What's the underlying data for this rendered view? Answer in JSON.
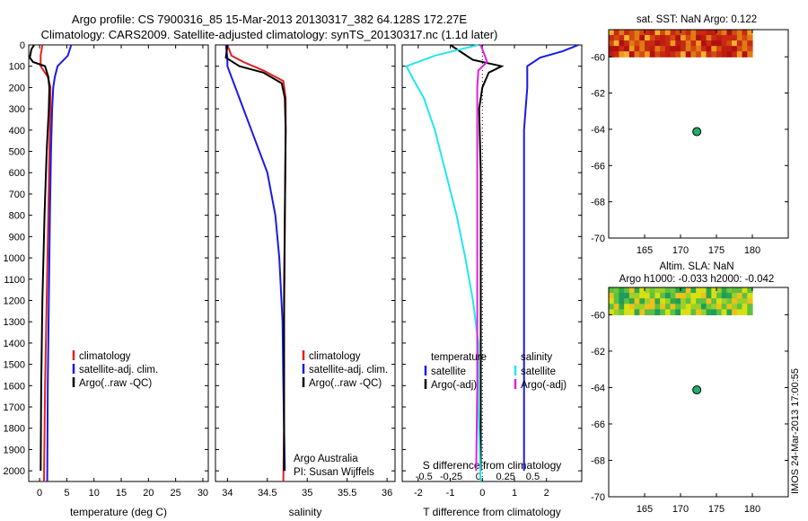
{
  "header": {
    "line1": "Argo profile: CS 7900316_85 15-Mar-2013 20130317_382 64.128S 172.27E",
    "line2": "Climatology: CARS2009. Satellite-adjusted climatology: synTS_20130317.nc (1.1d later)"
  },
  "side_stamp": "IMOS 24-Mar-2013 17:00:55",
  "colors": {
    "climatology": "#e02020",
    "satellite": "#1a1ae6",
    "argo": "#000000",
    "satellite_salinity": "#22e6ee",
    "argo_salinity": "#e020e0",
    "marker": "#1fae6a"
  },
  "chart_data": [
    {
      "type": "line",
      "xlabel": "temperature (deg C)",
      "ylabel": "",
      "xlim": [
        -2,
        31
      ],
      "ylim": [
        2050,
        0
      ],
      "xticks": [
        0,
        5,
        10,
        15,
        20,
        25,
        30
      ],
      "yticks": [
        0,
        100,
        200,
        300,
        400,
        500,
        600,
        700,
        800,
        900,
        1000,
        1100,
        1200,
        1300,
        1400,
        1500,
        1600,
        1700,
        1800,
        1900,
        2000
      ],
      "legend": [
        "climatology",
        "satellite-adj. clim.",
        "Argo(..raw -QC)"
      ],
      "series": [
        {
          "name": "climatology",
          "depth": [
            0,
            50,
            100,
            150,
            200,
            300,
            500,
            800,
            1200,
            1600,
            2050
          ],
          "values": [
            0.5,
            0.2,
            0.2,
            1.5,
            2.0,
            2.0,
            1.8,
            1.6,
            1.3,
            1.0,
            0.8
          ]
        },
        {
          "name": "satellite-adj. clim.",
          "depth": [
            0,
            50,
            100,
            150,
            200,
            300,
            500,
            800,
            1200,
            1600,
            2050
          ],
          "values": [
            5.8,
            5.2,
            3.3,
            2.8,
            2.5,
            2.3,
            2.1,
            1.9,
            1.7,
            1.5,
            1.4
          ]
        },
        {
          "name": "Argo(..raw -QC)",
          "depth": [
            0,
            20,
            60,
            80,
            100,
            150,
            200,
            300,
            500,
            800,
            1200,
            1600,
            2000
          ],
          "values": [
            -1.0,
            -1.5,
            -1.8,
            -1.2,
            1.0,
            1.6,
            1.8,
            1.7,
            1.3,
            0.9,
            0.5,
            0.3,
            0.2
          ]
        }
      ]
    },
    {
      "type": "line",
      "xlabel": "salinity",
      "ylabel": "",
      "xlim": [
        33.85,
        36.1
      ],
      "ylim": [
        2050,
        0
      ],
      "xticks": [
        34,
        34.5,
        35,
        35.5,
        36
      ],
      "legend": [
        "climatology",
        "satellite-adj. clim.",
        "Argo(..raw -QC)"
      ],
      "annotation": [
        "Argo Australia",
        "PI: Susan Wijffels"
      ],
      "series": [
        {
          "name": "climatology",
          "depth": [
            0,
            50,
            80,
            120,
            170,
            250,
            400,
            800,
            1300,
            1800,
            2050
          ],
          "values": [
            34.0,
            34.05,
            34.2,
            34.45,
            34.7,
            34.73,
            34.73,
            34.72,
            34.71,
            34.71,
            34.7
          ]
        },
        {
          "name": "satellite-adj. clim.",
          "depth": [
            0,
            60,
            100,
            200,
            300,
            400,
            600,
            800,
            1000,
            1300,
            1600,
            2000
          ],
          "values": [
            33.98,
            34.0,
            34.0,
            34.1,
            34.2,
            34.3,
            34.5,
            34.6,
            34.65,
            34.69,
            34.7,
            34.72
          ]
        },
        {
          "name": "Argo(..raw -QC)",
          "depth": [
            0,
            60,
            100,
            130,
            180,
            250,
            400,
            800,
            1200,
            1600,
            2000
          ],
          "values": [
            34.0,
            33.98,
            34.15,
            34.45,
            34.68,
            34.72,
            34.73,
            34.72,
            34.71,
            34.71,
            34.71
          ]
        }
      ]
    },
    {
      "type": "line",
      "xlabel": "T difference from climatology",
      "x2label": "S difference from climatology",
      "xlim": [
        -2.5,
        3.1
      ],
      "x2lim": [
        -0.7,
        0.95
      ],
      "ylim": [
        2050,
        0
      ],
      "xticks": [
        -2,
        -1,
        0,
        1,
        2
      ],
      "x2ticks": [
        -0.5,
        -0.25,
        0,
        0.25,
        0.5
      ],
      "legend_headers": [
        "temperature",
        "salinity"
      ],
      "legend": [
        "satellite",
        "Argo(-adj)",
        "satellite",
        "Argo(-adj)"
      ],
      "series": [
        {
          "name": "satellite",
          "axis": "T",
          "depth": [
            0,
            30,
            60,
            100,
            200,
            400,
            800,
            1200,
            1600,
            2000
          ],
          "values": [
            3.0,
            2.5,
            1.8,
            1.4,
            1.4,
            1.3,
            1.3,
            1.3,
            1.3,
            1.3
          ]
        },
        {
          "name": "Argo(-adj)",
          "axis": "T",
          "depth": [
            0,
            40,
            70,
            100,
            130,
            200,
            300,
            600,
            1000,
            1400,
            2000
          ],
          "values": [
            -1.0,
            -0.6,
            -0.3,
            0.6,
            0.2,
            0.0,
            -0.1,
            -0.05,
            -0.05,
            -0.05,
            -0.05
          ]
        },
        {
          "name": "satellite",
          "axis": "S",
          "depth": [
            0,
            50,
            100,
            160,
            250,
            400,
            600,
            800,
            1000,
            1200,
            1400,
            1700,
            2050
          ],
          "values": [
            0.0,
            -0.4,
            -0.66,
            -0.6,
            -0.5,
            -0.4,
            -0.3,
            -0.2,
            -0.12,
            -0.05,
            0.0,
            0.0,
            0.02
          ]
        },
        {
          "name": "Argo(-adj)",
          "axis": "S",
          "depth": [
            0,
            50,
            80,
            120,
            200,
            400,
            800,
            1200,
            1600,
            2000
          ],
          "values": [
            0.02,
            0.06,
            0.08,
            0.0,
            -0.01,
            -0.01,
            -0.01,
            -0.01,
            -0.01,
            -0.02
          ]
        }
      ]
    },
    {
      "type": "heatmap",
      "title": "sat. SST: NaN Argo: 0.122",
      "xlim": [
        160,
        185
      ],
      "ylim": [
        -70,
        -58.5
      ],
      "xticks": [
        165,
        170,
        175,
        180
      ],
      "yticks": [
        -60,
        -62,
        -64,
        -66,
        -68,
        -70
      ],
      "marker": {
        "lon": 172.27,
        "lat": -64.128
      }
    },
    {
      "type": "heatmap",
      "title": "Altim. SLA: NaN",
      "subtitle": "Argo h1000: -0.033 h2000: -0.042",
      "xlim": [
        160,
        185
      ],
      "ylim": [
        -70,
        -58.5
      ],
      "xticks": [
        165,
        170,
        175,
        180
      ],
      "yticks": [
        -60,
        -62,
        -64,
        -66,
        -68,
        -70
      ],
      "marker": {
        "lon": 172.27,
        "lat": -64.128
      }
    }
  ]
}
